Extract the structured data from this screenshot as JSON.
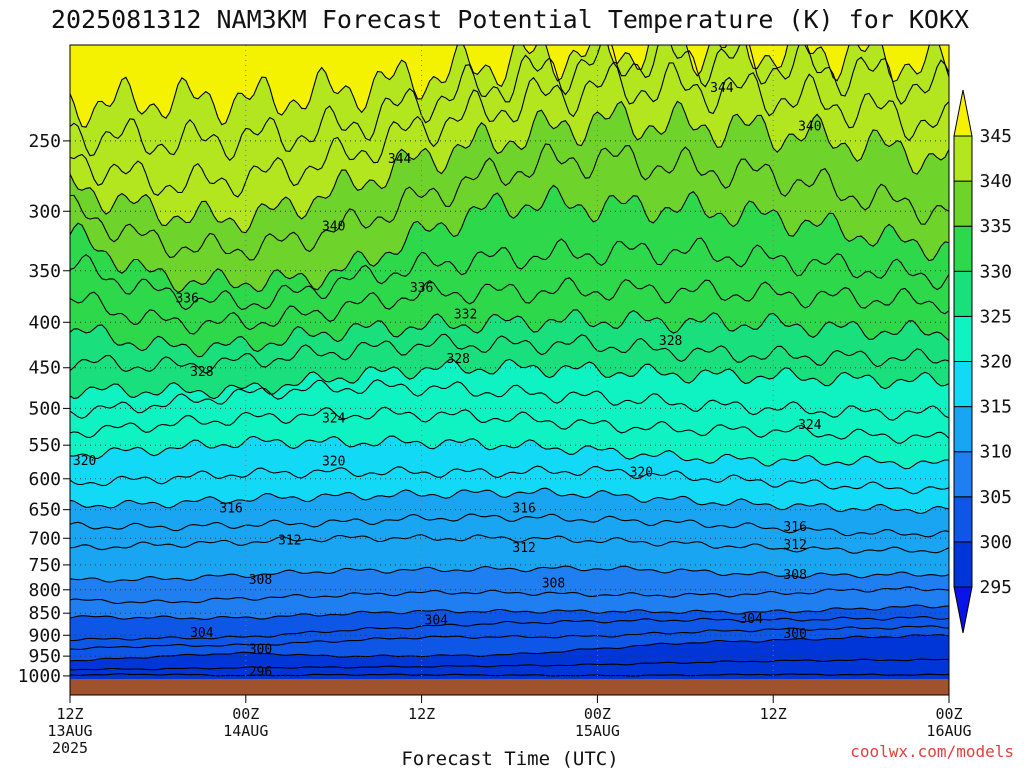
{
  "title": "2025081312 NAM3KM Forecast Potential Temperature (K) for KOKX",
  "credit": "coolwx.com/models",
  "chart_data": {
    "type": "heatmap",
    "title": "2025081312 NAM3KM Forecast Potential Temperature (K) for KOKX",
    "xlabel": "Forecast Time (UTC)",
    "ylabel": "",
    "x_ticks": [
      {
        "hour": 0,
        "label": "12Z",
        "sub": "13AUG",
        "sub2": "2025"
      },
      {
        "hour": 12,
        "label": "00Z",
        "sub": "14AUG",
        "sub2": ""
      },
      {
        "hour": 24,
        "label": "12Z",
        "sub": "",
        "sub2": ""
      },
      {
        "hour": 36,
        "label": "00Z",
        "sub": "15AUG",
        "sub2": ""
      },
      {
        "hour": 48,
        "label": "12Z",
        "sub": "",
        "sub2": ""
      },
      {
        "hour": 60,
        "label": "00Z",
        "sub": "16AUG",
        "sub2": ""
      }
    ],
    "xlim": [
      0,
      60
    ],
    "y_ticks": [
      250,
      300,
      350,
      400,
      450,
      500,
      550,
      600,
      650,
      700,
      750,
      800,
      850,
      900,
      950,
      1000
    ],
    "ylim": [
      1013,
      195
    ],
    "colorbar": {
      "levels": [
        295,
        300,
        305,
        310,
        315,
        320,
        325,
        330,
        335,
        340,
        345
      ],
      "colors": [
        "#0a14e8",
        "#0036d8",
        "#0e57e6",
        "#1f7ff0",
        "#1aa5f3",
        "#12daf6",
        "#0ff2c2",
        "#19e07c",
        "#2dd84a",
        "#6ed42c",
        "#b4e61f",
        "#f5f200"
      ]
    },
    "series": [
      {
        "theta": 296,
        "p": [
          997,
          996,
          999,
          997,
          997,
          998,
          999,
          998,
          996,
          997,
          997
        ]
      },
      {
        "theta": 298,
        "p": [
          983,
          982,
          979,
          978,
          976,
          974,
          971,
          966,
          962,
          960,
          959
        ]
      },
      {
        "theta": 300,
        "p": [
          961,
          951,
          943,
          950,
          949,
          946,
          932,
          918,
          912,
          905,
          900
        ]
      },
      {
        "theta": 302,
        "p": [
          932,
          925,
          923,
          914,
          905,
          904,
          902,
          893,
          887,
          884,
          880
        ]
      },
      {
        "theta": 304,
        "p": [
          910,
          907,
          904,
          890,
          880,
          872,
          868,
          865,
          865,
          862,
          860
        ]
      },
      {
        "theta": 306,
        "p": [
          858,
          860,
          860,
          852,
          846,
          846,
          846,
          847,
          847,
          840,
          834
        ]
      },
      {
        "theta": 308,
        "p": [
          822,
          826,
          818,
          812,
          806,
          806,
          810,
          811,
          808,
          800,
          798
        ]
      },
      {
        "theta": 310,
        "p": [
          780,
          778,
          770,
          762,
          760,
          758,
          757,
          762,
          770,
          770,
          768
        ]
      },
      {
        "theta": 312,
        "p": [
          718,
          712,
          707,
          700,
          700,
          700,
          704,
          710,
          718,
          722,
          722
        ]
      },
      {
        "theta": 314,
        "p": [
          678,
          680,
          676,
          672,
          665,
          663,
          667,
          673,
          682,
          690,
          692
        ]
      },
      {
        "theta": 316,
        "p": [
          642,
          640,
          632,
          628,
          625,
          622,
          625,
          635,
          642,
          648,
          650
        ]
      },
      {
        "theta": 318,
        "p": [
          606,
          600,
          592,
          590,
          590,
          590,
          588,
          597,
          605,
          612,
          618
        ]
      },
      {
        "theta": 320,
        "p": [
          563,
          556,
          546,
          546,
          546,
          550,
          558,
          568,
          572,
          574,
          578
        ]
      },
      {
        "theta": 322,
        "p": [
          532,
          522,
          513,
          508,
          508,
          513,
          522,
          528,
          530,
          536,
          540
        ]
      },
      {
        "theta": 324,
        "p": [
          504,
          495,
          482,
          474,
          474,
          480,
          486,
          494,
          500,
          505,
          506
        ]
      },
      {
        "theta": 326,
        "p": [
          477,
          478,
          476,
          462,
          452,
          450,
          453,
          458,
          460,
          464,
          466
        ]
      },
      {
        "theta": 328,
        "p": [
          443,
          448,
          442,
          432,
          424,
          424,
          424,
          432,
          436,
          438,
          440
        ]
      },
      {
        "theta": 330,
        "p": [
          408,
          425,
          424,
          410,
          404,
          400,
          398,
          400,
          402,
          408,
          410
        ]
      },
      {
        "theta": 332,
        "p": [
          377,
          398,
          400,
          387,
          372,
          370,
          368,
          369,
          372,
          376,
          380
        ]
      },
      {
        "theta": 334,
        "p": [
          345,
          370,
          380,
          362,
          346,
          338,
          334,
          333,
          340,
          348,
          356
        ]
      },
      {
        "theta": 336,
        "p": [
          320,
          355,
          360,
          352,
          318,
          295,
          296,
          298,
          305,
          318,
          330
        ]
      },
      {
        "theta": 338,
        "p": [
          300,
          325,
          330,
          315,
          290,
          270,
          262,
          268,
          274,
          288,
          300
        ]
      },
      {
        "theta": 340,
        "p": [
          282,
          300,
          305,
          285,
          262,
          248,
          238,
          240,
          244,
          252,
          262
        ]
      },
      {
        "theta": 342,
        "p": [
          262,
          278,
          275,
          262,
          242,
          228,
          218,
          218,
          222,
          230,
          240
        ]
      },
      {
        "theta": 344,
        "p": [
          245,
          250,
          248,
          242,
          226,
          214,
          204,
          202,
          205,
          210,
          218
        ]
      },
      {
        "theta": 346,
        "p": [
          228,
          225,
          225,
          220,
          212,
          203,
          198,
          196,
          198,
          200,
          206
        ]
      }
    ],
    "contour_labels": [
      {
        "text": "344",
        "hour": 22.5,
        "p": 262
      },
      {
        "text": "344",
        "hour": 44.5,
        "p": 218
      },
      {
        "text": "340",
        "hour": 50.5,
        "p": 241
      },
      {
        "text": "340",
        "hour": 18.0,
        "p": 312
      },
      {
        "text": "336",
        "hour": 8.0,
        "p": 376
      },
      {
        "text": "336",
        "hour": 24.0,
        "p": 366
      },
      {
        "text": "332",
        "hour": 27.0,
        "p": 392
      },
      {
        "text": "328",
        "hour": 9.0,
        "p": 455
      },
      {
        "text": "328",
        "hour": 26.5,
        "p": 440
      },
      {
        "text": "328",
        "hour": 41.0,
        "p": 420
      },
      {
        "text": "324",
        "hour": 18.0,
        "p": 513
      },
      {
        "text": "324",
        "hour": 50.5,
        "p": 522
      },
      {
        "text": "320",
        "hour": 1.0,
        "p": 573
      },
      {
        "text": "320",
        "hour": 18.0,
        "p": 574
      },
      {
        "text": "320",
        "hour": 39.0,
        "p": 590
      },
      {
        "text": "316",
        "hour": 11.0,
        "p": 648
      },
      {
        "text": "316",
        "hour": 31.0,
        "p": 648
      },
      {
        "text": "316",
        "hour": 49.5,
        "p": 680
      },
      {
        "text": "312",
        "hour": 15.0,
        "p": 704
      },
      {
        "text": "312",
        "hour": 31.0,
        "p": 718
      },
      {
        "text": "312",
        "hour": 49.5,
        "p": 712
      },
      {
        "text": "308",
        "hour": 13.0,
        "p": 780
      },
      {
        "text": "308",
        "hour": 33.0,
        "p": 787
      },
      {
        "text": "308",
        "hour": 49.5,
        "p": 770
      },
      {
        "text": "304",
        "hour": 9.0,
        "p": 895
      },
      {
        "text": "304",
        "hour": 25.0,
        "p": 866
      },
      {
        "text": "304",
        "hour": 46.5,
        "p": 863
      },
      {
        "text": "300",
        "hour": 13.0,
        "p": 934
      },
      {
        "text": "300",
        "hour": 49.5,
        "p": 897
      },
      {
        "text": "296",
        "hour": 13.0,
        "p": 990
      }
    ],
    "grid": true
  }
}
